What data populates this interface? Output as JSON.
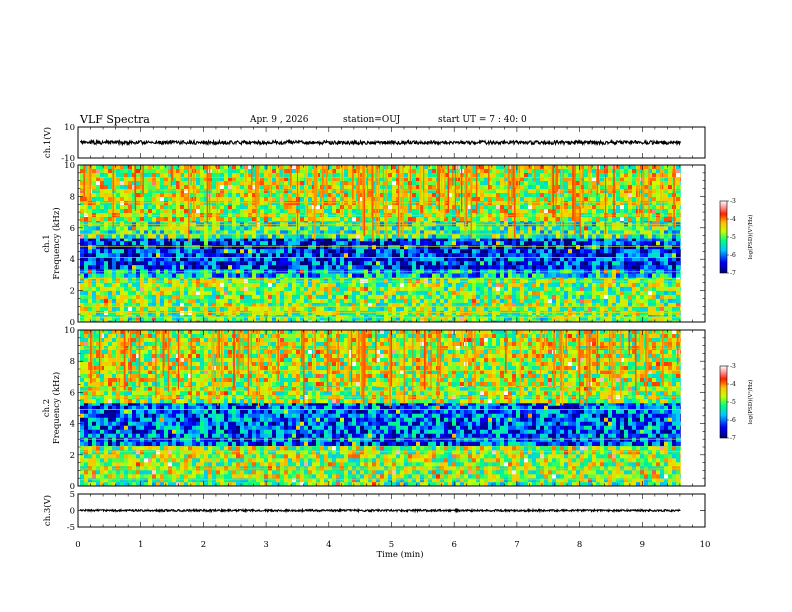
{
  "header": {
    "title": "VLF Spectra",
    "date": "Apr. 9 , 2026",
    "station": "station=OUJ",
    "start_ut": "start UT =  7 : 40: 0"
  },
  "chart_data": [
    {
      "type": "line",
      "panel": "ch1-waveform",
      "ylabel": "ch.1(V)",
      "ylim": [
        -10,
        10
      ],
      "yticks": [
        "10",
        "-10"
      ],
      "xlim": [
        0,
        10
      ],
      "mean_level": 0.0,
      "amplitude": 1.2,
      "end_time": 9.8,
      "color": "#000000"
    },
    {
      "type": "heatmap",
      "panel": "ch1-spectrogram",
      "ylabel_line1": "ch.1",
      "ylabel_line2": "Frequency (kHz)",
      "ylim": [
        0,
        10
      ],
      "yticks": [
        "0",
        "2",
        "4",
        "6",
        "8",
        "10"
      ],
      "xlim": [
        0,
        10
      ],
      "end_time": 9.8,
      "colorbar": {
        "label": "log(PSD)(V²/Hz)",
        "range": [
          -7,
          -3
        ],
        "ticks": [
          "-3",
          "-4",
          "-5",
          "-6",
          "-7"
        ]
      },
      "bands": [
        {
          "f": [
            0.0,
            0.6
          ],
          "level": -5.0
        },
        {
          "f": [
            0.6,
            3.0
          ],
          "level": -4.9
        },
        {
          "f": [
            3.0,
            3.6
          ],
          "level": -5.7
        },
        {
          "f": [
            3.6,
            5.4
          ],
          "level": -6.3
        },
        {
          "f": [
            5.4,
            6.6
          ],
          "level": -5.2
        },
        {
          "f": [
            6.6,
            10.0
          ],
          "level": -4.7
        }
      ],
      "hlines_khz": [
        0.3,
        0.6,
        1.0,
        2.6,
        3.2,
        4.1,
        4.8,
        5.6,
        6.2,
        6.8,
        7.6,
        8.4,
        9.2
      ],
      "events": {
        "count": 120,
        "levels": [
          -4.2,
          -3.8
        ]
      }
    },
    {
      "type": "heatmap",
      "panel": "ch2-spectrogram",
      "ylabel_line1": "ch.2",
      "ylabel_line2": "Frequency (kHz)",
      "ylim": [
        0,
        10
      ],
      "yticks": [
        "0",
        "2",
        "4",
        "6",
        "8",
        "10"
      ],
      "xlim": [
        0,
        10
      ],
      "end_time": 9.8,
      "colorbar": {
        "label": "log(PSD)(V²/Hz)",
        "range": [
          -7,
          -3
        ],
        "ticks": [
          "-3",
          "-4",
          "-5",
          "-6",
          "-7"
        ]
      },
      "bands": [
        {
          "f": [
            0.0,
            0.5
          ],
          "level": -5.0
        },
        {
          "f": [
            0.5,
            2.8
          ],
          "level": -4.8
        },
        {
          "f": [
            2.8,
            5.4
          ],
          "level": -6.1
        },
        {
          "f": [
            5.4,
            6.6
          ],
          "level": -4.8
        },
        {
          "f": [
            6.6,
            10.0
          ],
          "level": -4.7
        }
      ],
      "hlines_khz": [
        0.4,
        1.1,
        2.2,
        3.0,
        4.9,
        5.7,
        6.1,
        7.4,
        8.8
      ],
      "events": {
        "count": 110,
        "levels": [
          -4.2,
          -3.8
        ]
      }
    },
    {
      "type": "line",
      "panel": "ch3-waveform",
      "ylabel": "ch.3(V)",
      "ylim": [
        -5,
        5
      ],
      "yticks": [
        "5",
        "0",
        "-5"
      ],
      "xlim": [
        0,
        10
      ],
      "mean_level": 0.0,
      "amplitude": 0.3,
      "end_time": 9.8,
      "color": "#000000"
    }
  ],
  "xaxis": {
    "label": "Time (min)",
    "ticks": [
      "0",
      "1",
      "2",
      "3",
      "4",
      "5",
      "6",
      "7",
      "8",
      "9",
      "10"
    ]
  }
}
